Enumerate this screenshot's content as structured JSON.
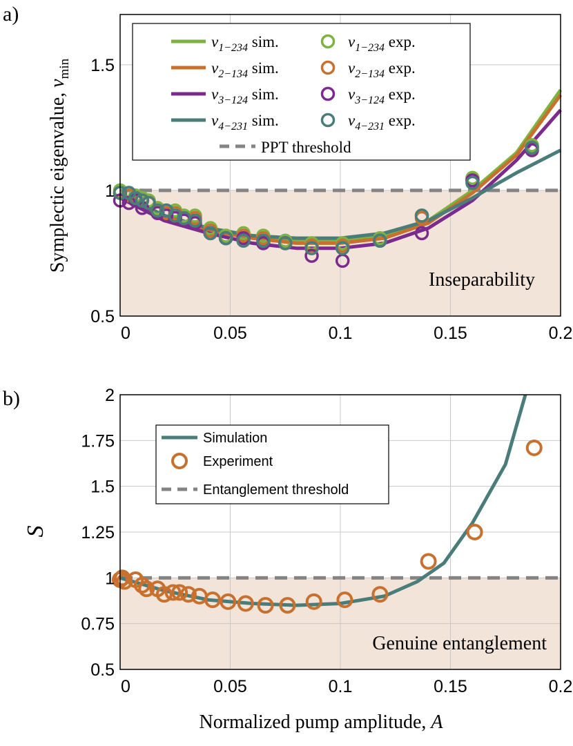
{
  "chart_data": [
    {
      "panel_label": "a)",
      "type": "line",
      "ylabel_main": "Symplectic eigenvalue, ",
      "ylabel_symbol": "ν",
      "ylabel_sub": "min",
      "xlim": [
        0,
        0.2
      ],
      "ylim": [
        0.5,
        1.7
      ],
      "xticks": [
        0,
        0.05,
        0.1,
        0.15,
        0.2
      ],
      "xtick_labels": [
        "0",
        "0.05",
        "0.1",
        "0.15",
        "0.2"
      ],
      "yticks": [
        0.5,
        1,
        1.5
      ],
      "ytick_labels": [
        "0.5",
        "1",
        "1.5"
      ],
      "shaded_label": "Inseparability",
      "threshold": 1.0,
      "threshold_label": "PPT threshold",
      "series": [
        {
          "name": "ν1-234",
          "sub": "1−234",
          "color": "#7cb342",
          "sim": {
            "x": [
              0,
              0.02,
              0.04,
              0.06,
              0.08,
              0.1,
              0.12,
              0.14,
              0.16,
              0.18,
              0.2
            ],
            "y": [
              0.99,
              0.9,
              0.85,
              0.82,
              0.8,
              0.8,
              0.82,
              0.88,
              1.0,
              1.15,
              1.4
            ]
          },
          "exp": {
            "x": [
              0,
              0.004,
              0.007,
              0.01,
              0.013,
              0.017,
              0.021,
              0.025,
              0.029,
              0.034,
              0.041,
              0.048,
              0.056,
              0.065,
              0.075,
              0.087,
              0.101,
              0.118,
              0.137,
              0.16,
              0.187
            ],
            "y": [
              1.0,
              0.99,
              0.98,
              0.97,
              0.96,
              0.93,
              0.92,
              0.92,
              0.9,
              0.9,
              0.85,
              0.82,
              0.83,
              0.82,
              0.8,
              0.79,
              0.79,
              0.81,
              0.9,
              1.05,
              1.18
            ]
          }
        },
        {
          "name": "ν2-134",
          "sub": "2−134",
          "color": "#c8702e",
          "sim": {
            "x": [
              0,
              0.02,
              0.04,
              0.06,
              0.08,
              0.1,
              0.12,
              0.14,
              0.16,
              0.18,
              0.2
            ],
            "y": [
              0.98,
              0.89,
              0.84,
              0.81,
              0.79,
              0.79,
              0.81,
              0.87,
              0.99,
              1.14,
              1.38
            ]
          },
          "exp": {
            "x": [
              0,
              0.004,
              0.007,
              0.01,
              0.013,
              0.017,
              0.021,
              0.025,
              0.029,
              0.034,
              0.041,
              0.048,
              0.056,
              0.065,
              0.075,
              0.087,
              0.101,
              0.118,
              0.137,
              0.16,
              0.187
            ],
            "y": [
              0.99,
              0.98,
              0.97,
              0.96,
              0.95,
              0.92,
              0.91,
              0.91,
              0.89,
              0.89,
              0.84,
              0.81,
              0.82,
              0.81,
              0.79,
              0.78,
              0.78,
              0.8,
              0.89,
              1.04,
              1.17
            ]
          }
        },
        {
          "name": "ν3-124",
          "sub": "3−124",
          "color": "#7b2a8e",
          "sim": {
            "x": [
              0,
              0.02,
              0.04,
              0.06,
              0.08,
              0.1,
              0.12,
              0.14,
              0.16,
              0.18,
              0.2
            ],
            "y": [
              0.97,
              0.88,
              0.83,
              0.79,
              0.77,
              0.77,
              0.79,
              0.85,
              0.96,
              1.12,
              1.32
            ]
          },
          "exp": {
            "x": [
              0,
              0.004,
              0.007,
              0.01,
              0.013,
              0.017,
              0.021,
              0.025,
              0.029,
              0.034,
              0.041,
              0.048,
              0.056,
              0.065,
              0.075,
              0.087,
              0.101,
              0.118,
              0.137,
              0.16,
              0.187
            ],
            "y": [
              0.96,
              0.95,
              0.96,
              0.93,
              0.95,
              0.91,
              0.9,
              0.89,
              0.88,
              0.87,
              0.83,
              0.81,
              0.81,
              0.79,
              0.79,
              0.74,
              0.72,
              0.8,
              0.83,
              1.04,
              1.16
            ]
          }
        },
        {
          "name": "ν4-231",
          "sub": "4−231",
          "color": "#4a7c7a",
          "sim": {
            "x": [
              0,
              0.02,
              0.04,
              0.06,
              0.08,
              0.1,
              0.12,
              0.14,
              0.16,
              0.18,
              0.2
            ],
            "y": [
              0.98,
              0.9,
              0.85,
              0.82,
              0.81,
              0.81,
              0.83,
              0.88,
              0.97,
              1.07,
              1.16
            ]
          },
          "exp": {
            "x": [
              0,
              0.004,
              0.007,
              0.01,
              0.013,
              0.017,
              0.021,
              0.025,
              0.029,
              0.034,
              0.041,
              0.048,
              0.056,
              0.065,
              0.075,
              0.087,
              0.101,
              0.118,
              0.137,
              0.16,
              0.187
            ],
            "y": [
              0.99,
              0.99,
              0.97,
              0.96,
              0.95,
              0.92,
              0.92,
              0.9,
              0.89,
              0.88,
              0.83,
              0.81,
              0.8,
              0.8,
              0.79,
              0.77,
              0.77,
              0.8,
              0.9,
              1.03,
              1.17
            ]
          }
        }
      ],
      "legend": {
        "sim_suffix": " sim.",
        "exp_suffix": " exp.",
        "threshold_label": "PPT threshold",
        "placement": "top"
      }
    },
    {
      "panel_label": "b)",
      "type": "line",
      "ylabel": "S",
      "xlabel_main": "Normalized pump amplitude, ",
      "xlabel_symbol": "A",
      "xlim": [
        0,
        0.2
      ],
      "ylim": [
        0.5,
        2
      ],
      "xticks": [
        0,
        0.05,
        0.1,
        0.15,
        0.2
      ],
      "xtick_labels": [
        "0",
        "0.05",
        "0.1",
        "0.15",
        "0.2"
      ],
      "yticks": [
        0.5,
        0.75,
        1,
        1.25,
        1.5,
        1.75,
        2
      ],
      "ytick_labels": [
        "0.5",
        "0.75",
        "1",
        "1.25",
        "1.5",
        "1.75",
        "2"
      ],
      "shaded_label": "Genuine entanglement",
      "threshold": 1.0,
      "simulation": {
        "name": "Simulation",
        "color": "#4a7c7a",
        "x": [
          0,
          0.02,
          0.04,
          0.06,
          0.08,
          0.1,
          0.12,
          0.135,
          0.147,
          0.16,
          0.175,
          0.184
        ],
        "y": [
          1.0,
          0.93,
          0.88,
          0.86,
          0.85,
          0.86,
          0.9,
          0.98,
          1.08,
          1.3,
          1.62,
          2.0
        ]
      },
      "experiment": {
        "name": "Experiment",
        "color": "#c8702e",
        "x": [
          0,
          0.001,
          0.002,
          0.007,
          0.01,
          0.012,
          0.017,
          0.02,
          0.024,
          0.027,
          0.031,
          0.036,
          0.042,
          0.049,
          0.057,
          0.066,
          0.076,
          0.088,
          0.102,
          0.118,
          0.14,
          0.161,
          0.188
        ],
        "y": [
          0.99,
          1.0,
          0.98,
          0.99,
          0.96,
          0.94,
          0.94,
          0.91,
          0.92,
          0.92,
          0.91,
          0.9,
          0.88,
          0.87,
          0.86,
          0.85,
          0.85,
          0.87,
          0.88,
          0.91,
          1.09,
          1.25,
          1.71
        ]
      },
      "legend": {
        "simulation_label": "Simulation",
        "experiment_label": "Experiment",
        "threshold_label": "Entanglement threshold",
        "placement": "top-left"
      }
    }
  ]
}
